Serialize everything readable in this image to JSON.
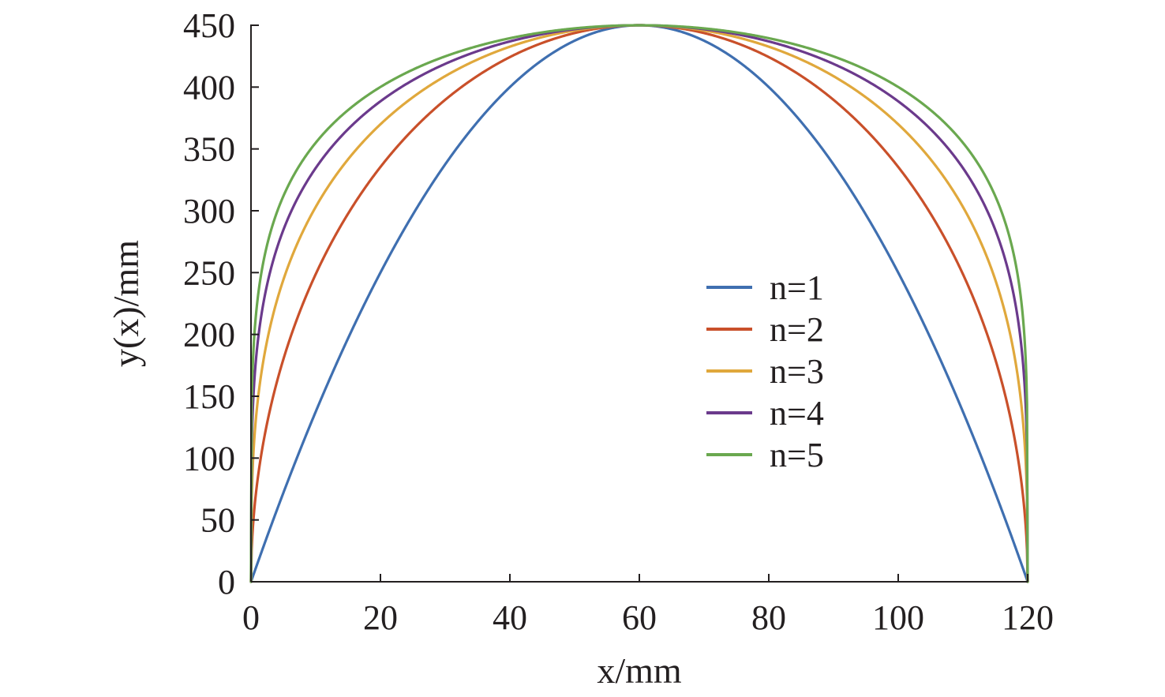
{
  "chart_data": {
    "type": "line",
    "xlabel": "x/mm",
    "ylabel": "y(x)/mm",
    "xlim": [
      0,
      120
    ],
    "ylim": [
      0,
      450
    ],
    "xticks": [
      "0",
      "20",
      "40",
      "60",
      "80",
      "100",
      "120"
    ],
    "yticks": [
      "0",
      "50",
      "100",
      "150",
      "200",
      "250",
      "300",
      "350",
      "400",
      "450"
    ],
    "grid": false,
    "legend_position": "center-right",
    "peak": {
      "x": 60,
      "y": 450
    },
    "series": [
      {
        "name": "n=1",
        "color": "#3f6fb0",
        "exponent": 1,
        "points": [
          [
            0,
            0
          ],
          [
            10,
            172
          ],
          [
            20,
            281
          ],
          [
            30,
            338
          ],
          [
            40,
            400
          ],
          [
            50,
            438
          ],
          [
            60,
            450
          ],
          [
            70,
            438
          ],
          [
            80,
            400
          ],
          [
            90,
            338
          ],
          [
            100,
            281
          ],
          [
            110,
            172
          ],
          [
            120,
            0
          ]
        ]
      },
      {
        "name": "n=2",
        "color": "#c9502a",
        "exponent": 2,
        "points": [
          [
            0,
            0
          ],
          [
            10,
            247
          ],
          [
            20,
            335
          ],
          [
            30,
            390
          ],
          [
            40,
            424
          ],
          [
            50,
            444
          ],
          [
            60,
            450
          ],
          [
            70,
            444
          ],
          [
            80,
            424
          ],
          [
            90,
            390
          ],
          [
            100,
            335
          ],
          [
            110,
            247
          ],
          [
            120,
            0
          ]
        ]
      },
      {
        "name": "n=3",
        "color": "#e0a83c",
        "exponent": 3,
        "points": [
          [
            0,
            0
          ],
          [
            10,
            310
          ],
          [
            20,
            371
          ],
          [
            30,
            408
          ],
          [
            40,
            432
          ],
          [
            50,
            446
          ],
          [
            60,
            450
          ],
          [
            70,
            446
          ],
          [
            80,
            432
          ],
          [
            90,
            408
          ],
          [
            100,
            371
          ],
          [
            110,
            310
          ],
          [
            120,
            0
          ]
        ]
      },
      {
        "name": "n=4",
        "color": "#6b3a8c",
        "exponent": 4,
        "points": [
          [
            0,
            0
          ],
          [
            10,
            342
          ],
          [
            20,
            393
          ],
          [
            30,
            420
          ],
          [
            40,
            437
          ],
          [
            50,
            447
          ],
          [
            60,
            450
          ],
          [
            70,
            447
          ],
          [
            80,
            437
          ],
          [
            90,
            420
          ],
          [
            100,
            393
          ],
          [
            110,
            342
          ],
          [
            120,
            0
          ]
        ]
      },
      {
        "name": "n=5",
        "color": "#6aa84f",
        "exponent": 5,
        "points": [
          [
            0,
            0
          ],
          [
            10,
            362
          ],
          [
            20,
            405
          ],
          [
            30,
            427
          ],
          [
            40,
            441
          ],
          [
            50,
            448
          ],
          [
            60,
            450
          ],
          [
            70,
            448
          ],
          [
            80,
            441
          ],
          [
            90,
            427
          ],
          [
            100,
            405
          ],
          [
            110,
            362
          ],
          [
            120,
            0
          ]
        ]
      }
    ]
  }
}
